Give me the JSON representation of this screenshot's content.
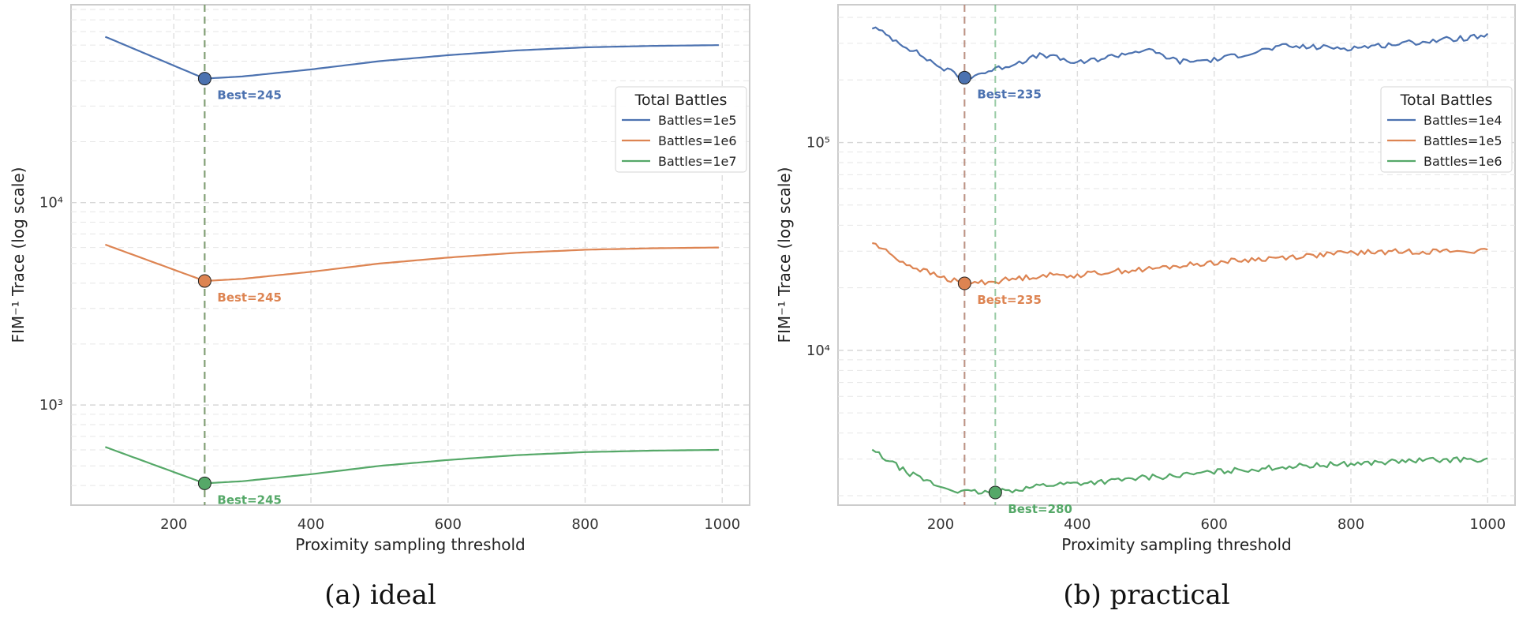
{
  "chart_data": [
    {
      "type": "line",
      "caption": "(a) ideal",
      "xlabel": "Proximity sampling threshold",
      "ylabel": "FIM⁻¹ Trace (log scale)",
      "yscale": "log",
      "xlim": [
        50,
        1040
      ],
      "ylim": [
        320,
        95000
      ],
      "xticks": [
        200,
        400,
        600,
        800,
        1000
      ],
      "yticks": [
        {
          "value": 1000,
          "label": "10³"
        },
        {
          "value": 10000,
          "label": "10⁴"
        }
      ],
      "grid": true,
      "legend": {
        "title": "Total Battles",
        "placement": "top-right"
      },
      "x": [
        100,
        245,
        300,
        400,
        500,
        600,
        700,
        800,
        900,
        995
      ],
      "series": [
        {
          "name": "Battles=1e5",
          "color": "#4c72b0",
          "values": [
            66000,
            41000,
            42000,
            45500,
            50000,
            53500,
            56500,
            58500,
            59500,
            60000
          ],
          "best": {
            "x": 245,
            "y": 41000,
            "label": "Best=245"
          }
        },
        {
          "name": "Battles=1e6",
          "color": "#dd8452",
          "values": [
            6200,
            4100,
            4200,
            4550,
            5000,
            5350,
            5650,
            5850,
            5950,
            6000
          ],
          "best": {
            "x": 245,
            "y": 4100,
            "label": "Best=245"
          }
        },
        {
          "name": "Battles=1e7",
          "color": "#55a868",
          "values": [
            620,
            410,
            420,
            455,
            500,
            535,
            565,
            585,
            595,
            600
          ],
          "best": {
            "x": 245,
            "y": 410,
            "label": "Best=245"
          }
        }
      ]
    },
    {
      "type": "line",
      "caption": "(b) practical",
      "xlabel": "Proximity sampling threshold",
      "ylabel": "FIM⁻¹ Trace (log scale)",
      "yscale": "log",
      "xlim": [
        50,
        1040
      ],
      "ylim": [
        1800,
        460000
      ],
      "xticks": [
        200,
        400,
        600,
        800,
        1000
      ],
      "yticks": [
        {
          "value": 10000,
          "label": "10⁴"
        },
        {
          "value": 100000,
          "label": "10⁵"
        }
      ],
      "grid": true,
      "legend": {
        "title": "Total Battles",
        "placement": "top-right"
      },
      "x": [
        100,
        150,
        200,
        235,
        280,
        350,
        400,
        450,
        500,
        550,
        600,
        700,
        800,
        900,
        1000
      ],
      "series": [
        {
          "name": "Battles=1e4",
          "color": "#4c72b0",
          "values": [
            360000,
            290000,
            230000,
            205000,
            225000,
            265000,
            240000,
            260000,
            280000,
            245000,
            250000,
            290000,
            285000,
            305000,
            325000
          ],
          "best": {
            "x": 235,
            "y": 205000,
            "label": "Best=235"
          }
        },
        {
          "name": "Battles=1e5",
          "color": "#dd8452",
          "values": [
            33000,
            26000,
            22500,
            21000,
            21500,
            23000,
            23000,
            24000,
            24500,
            25500,
            26500,
            28000,
            29500,
            30000,
            30000
          ],
          "best": {
            "x": 235,
            "y": 21000,
            "label": "Best=235"
          }
        },
        {
          "name": "Battles=1e6",
          "color": "#55a868",
          "values": [
            3300,
            2600,
            2200,
            2080,
            2070,
            2250,
            2300,
            2350,
            2450,
            2500,
            2600,
            2750,
            2850,
            2950,
            3000
          ],
          "best": {
            "x": 280,
            "y": 2070,
            "label": "Best=280"
          }
        }
      ]
    }
  ]
}
